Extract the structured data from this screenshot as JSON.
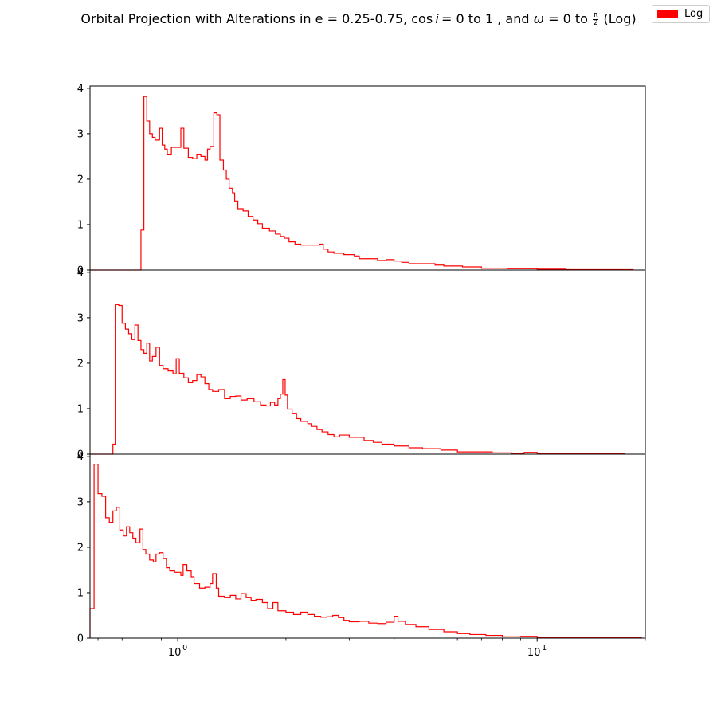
{
  "title": {
    "prefix": "Orbital Projection with Alterations in e = 0.25-0.75, cos",
    "var_i": "i",
    "mid": "= 0 to 1 , and",
    "omega": "ω",
    "after_omega": "= 0 to",
    "frac_num": "π",
    "frac_den": "2",
    "suffix": "(Log)"
  },
  "legend": {
    "label": "Log",
    "color": "#ff0000"
  },
  "chart_data": {
    "type": "histogram",
    "x_scale": "log",
    "xlim": [
      0.57,
      20.0
    ],
    "x_ticks": [
      {
        "value": 1,
        "base": "10",
        "exp": "0"
      },
      {
        "value": 10,
        "base": "10",
        "exp": "1"
      }
    ],
    "line_color": "#ff0000",
    "panels": [
      {
        "ylim": [
          0,
          4.05
        ],
        "y_ticks": [
          "0",
          "1",
          "2",
          "3",
          "4"
        ],
        "steps": [
          [
            0.57,
            0
          ],
          [
            0.79,
            0.88
          ],
          [
            0.805,
            3.82
          ],
          [
            0.82,
            3.28
          ],
          [
            0.835,
            3.0
          ],
          [
            0.85,
            2.92
          ],
          [
            0.865,
            2.86
          ],
          [
            0.89,
            3.12
          ],
          [
            0.905,
            2.75
          ],
          [
            0.92,
            2.66
          ],
          [
            0.935,
            2.55
          ],
          [
            0.96,
            2.7
          ],
          [
            0.99,
            2.7
          ],
          [
            1.02,
            3.12
          ],
          [
            1.04,
            2.68
          ],
          [
            1.07,
            2.48
          ],
          [
            1.1,
            2.45
          ],
          [
            1.13,
            2.55
          ],
          [
            1.16,
            2.5
          ],
          [
            1.19,
            2.42
          ],
          [
            1.21,
            2.66
          ],
          [
            1.23,
            2.72
          ],
          [
            1.26,
            3.46
          ],
          [
            1.285,
            3.42
          ],
          [
            1.31,
            2.42
          ],
          [
            1.34,
            2.2
          ],
          [
            1.365,
            2.0
          ],
          [
            1.39,
            1.8
          ],
          [
            1.42,
            1.7
          ],
          [
            1.44,
            1.52
          ],
          [
            1.47,
            1.35
          ],
          [
            1.52,
            1.3
          ],
          [
            1.57,
            1.18
          ],
          [
            1.62,
            1.1
          ],
          [
            1.67,
            1.02
          ],
          [
            1.72,
            0.92
          ],
          [
            1.8,
            0.86
          ],
          [
            1.87,
            0.79
          ],
          [
            1.93,
            0.74
          ],
          [
            1.98,
            0.7
          ],
          [
            2.04,
            0.62
          ],
          [
            2.12,
            0.57
          ],
          [
            2.2,
            0.55
          ],
          [
            2.48,
            0.57
          ],
          [
            2.54,
            0.46
          ],
          [
            2.62,
            0.4
          ],
          [
            2.72,
            0.37
          ],
          [
            2.9,
            0.34
          ],
          [
            3.1,
            0.31
          ],
          [
            3.2,
            0.25
          ],
          [
            3.6,
            0.21
          ],
          [
            3.8,
            0.23
          ],
          [
            4.0,
            0.2
          ],
          [
            4.2,
            0.17
          ],
          [
            4.4,
            0.14
          ],
          [
            5.2,
            0.11
          ],
          [
            5.5,
            0.09
          ],
          [
            6.2,
            0.07
          ],
          [
            7.0,
            0.04
          ],
          [
            8.3,
            0.03
          ],
          [
            10.0,
            0.02
          ],
          [
            12.0,
            0.01
          ],
          [
            18.5,
            0
          ]
        ]
      },
      {
        "ylim": [
          0,
          4.05
        ],
        "y_ticks": [
          "0",
          "1",
          "2",
          "3",
          "4"
        ],
        "steps": [
          [
            0.57,
            0
          ],
          [
            0.66,
            0.22
          ],
          [
            0.67,
            3.29
          ],
          [
            0.685,
            3.27
          ],
          [
            0.7,
            2.88
          ],
          [
            0.715,
            2.75
          ],
          [
            0.73,
            2.65
          ],
          [
            0.745,
            2.52
          ],
          [
            0.76,
            2.84
          ],
          [
            0.775,
            2.5
          ],
          [
            0.79,
            2.3
          ],
          [
            0.805,
            2.22
          ],
          [
            0.82,
            2.44
          ],
          [
            0.835,
            2.05
          ],
          [
            0.85,
            2.15
          ],
          [
            0.87,
            2.35
          ],
          [
            0.89,
            1.95
          ],
          [
            0.91,
            1.88
          ],
          [
            0.94,
            1.83
          ],
          [
            0.97,
            1.77
          ],
          [
            0.99,
            2.1
          ],
          [
            1.01,
            1.78
          ],
          [
            1.04,
            1.68
          ],
          [
            1.07,
            1.57
          ],
          [
            1.1,
            1.62
          ],
          [
            1.13,
            1.75
          ],
          [
            1.16,
            1.7
          ],
          [
            1.19,
            1.55
          ],
          [
            1.22,
            1.42
          ],
          [
            1.25,
            1.38
          ],
          [
            1.3,
            1.42
          ],
          [
            1.35,
            1.22
          ],
          [
            1.4,
            1.27
          ],
          [
            1.45,
            1.28
          ],
          [
            1.5,
            1.19
          ],
          [
            1.56,
            1.22
          ],
          [
            1.63,
            1.15
          ],
          [
            1.7,
            1.08
          ],
          [
            1.76,
            1.06
          ],
          [
            1.81,
            1.14
          ],
          [
            1.86,
            1.08
          ],
          [
            1.9,
            1.22
          ],
          [
            1.93,
            1.32
          ],
          [
            1.96,
            1.64
          ],
          [
            1.99,
            1.3
          ],
          [
            2.02,
            0.99
          ],
          [
            2.08,
            0.89
          ],
          [
            2.14,
            0.78
          ],
          [
            2.2,
            0.72
          ],
          [
            2.3,
            0.67
          ],
          [
            2.36,
            0.61
          ],
          [
            2.44,
            0.54
          ],
          [
            2.52,
            0.49
          ],
          [
            2.62,
            0.43
          ],
          [
            2.72,
            0.38
          ],
          [
            2.82,
            0.42
          ],
          [
            3.0,
            0.37
          ],
          [
            3.3,
            0.3
          ],
          [
            3.5,
            0.26
          ],
          [
            3.7,
            0.22
          ],
          [
            4.0,
            0.18
          ],
          [
            4.4,
            0.14
          ],
          [
            4.8,
            0.12
          ],
          [
            5.4,
            0.09
          ],
          [
            6.0,
            0.05
          ],
          [
            7.5,
            0.03
          ],
          [
            8.5,
            0.02
          ],
          [
            9.2,
            0.04
          ],
          [
            10.0,
            0.02
          ],
          [
            11.5,
            0.01
          ],
          [
            17.5,
            0
          ]
        ]
      },
      {
        "ylim": [
          0,
          4.05
        ],
        "y_ticks": [
          "0",
          "1",
          "2",
          "3",
          "4"
        ],
        "steps": [
          [
            0.57,
            0.65
          ],
          [
            0.585,
            3.83
          ],
          [
            0.6,
            3.18
          ],
          [
            0.615,
            3.12
          ],
          [
            0.63,
            2.65
          ],
          [
            0.645,
            2.55
          ],
          [
            0.66,
            2.8
          ],
          [
            0.675,
            2.88
          ],
          [
            0.69,
            2.38
          ],
          [
            0.705,
            2.25
          ],
          [
            0.72,
            2.45
          ],
          [
            0.735,
            2.32
          ],
          [
            0.75,
            2.2
          ],
          [
            0.765,
            2.1
          ],
          [
            0.785,
            2.4
          ],
          [
            0.8,
            1.95
          ],
          [
            0.815,
            1.85
          ],
          [
            0.835,
            1.72
          ],
          [
            0.855,
            1.68
          ],
          [
            0.87,
            1.85
          ],
          [
            0.89,
            1.88
          ],
          [
            0.91,
            1.75
          ],
          [
            0.93,
            1.55
          ],
          [
            0.95,
            1.48
          ],
          [
            0.98,
            1.45
          ],
          [
            1.02,
            1.38
          ],
          [
            1.035,
            1.62
          ],
          [
            1.06,
            1.48
          ],
          [
            1.09,
            1.35
          ],
          [
            1.11,
            1.2
          ],
          [
            1.15,
            1.1
          ],
          [
            1.19,
            1.12
          ],
          [
            1.23,
            1.2
          ],
          [
            1.25,
            1.42
          ],
          [
            1.28,
            1.1
          ],
          [
            1.3,
            0.92
          ],
          [
            1.35,
            0.9
          ],
          [
            1.4,
            0.94
          ],
          [
            1.45,
            0.86
          ],
          [
            1.5,
            0.98
          ],
          [
            1.55,
            0.9
          ],
          [
            1.6,
            0.83
          ],
          [
            1.65,
            0.85
          ],
          [
            1.72,
            0.78
          ],
          [
            1.78,
            0.65
          ],
          [
            1.84,
            0.78
          ],
          [
            1.9,
            0.6
          ],
          [
            2.0,
            0.57
          ],
          [
            2.1,
            0.52
          ],
          [
            2.2,
            0.57
          ],
          [
            2.3,
            0.52
          ],
          [
            2.4,
            0.48
          ],
          [
            2.5,
            0.46
          ],
          [
            2.6,
            0.47
          ],
          [
            2.7,
            0.5
          ],
          [
            2.8,
            0.45
          ],
          [
            2.9,
            0.39
          ],
          [
            3.0,
            0.36
          ],
          [
            3.2,
            0.37
          ],
          [
            3.4,
            0.33
          ],
          [
            3.6,
            0.32
          ],
          [
            3.8,
            0.35
          ],
          [
            4.0,
            0.48
          ],
          [
            4.1,
            0.37
          ],
          [
            4.3,
            0.3
          ],
          [
            4.6,
            0.25
          ],
          [
            5.0,
            0.19
          ],
          [
            5.5,
            0.14
          ],
          [
            6.0,
            0.1
          ],
          [
            6.5,
            0.08
          ],
          [
            7.2,
            0.06
          ],
          [
            8.0,
            0.03
          ],
          [
            9.0,
            0.04
          ],
          [
            10.0,
            0.02
          ],
          [
            12.0,
            0.01
          ],
          [
            19.5,
            0
          ]
        ]
      }
    ]
  }
}
